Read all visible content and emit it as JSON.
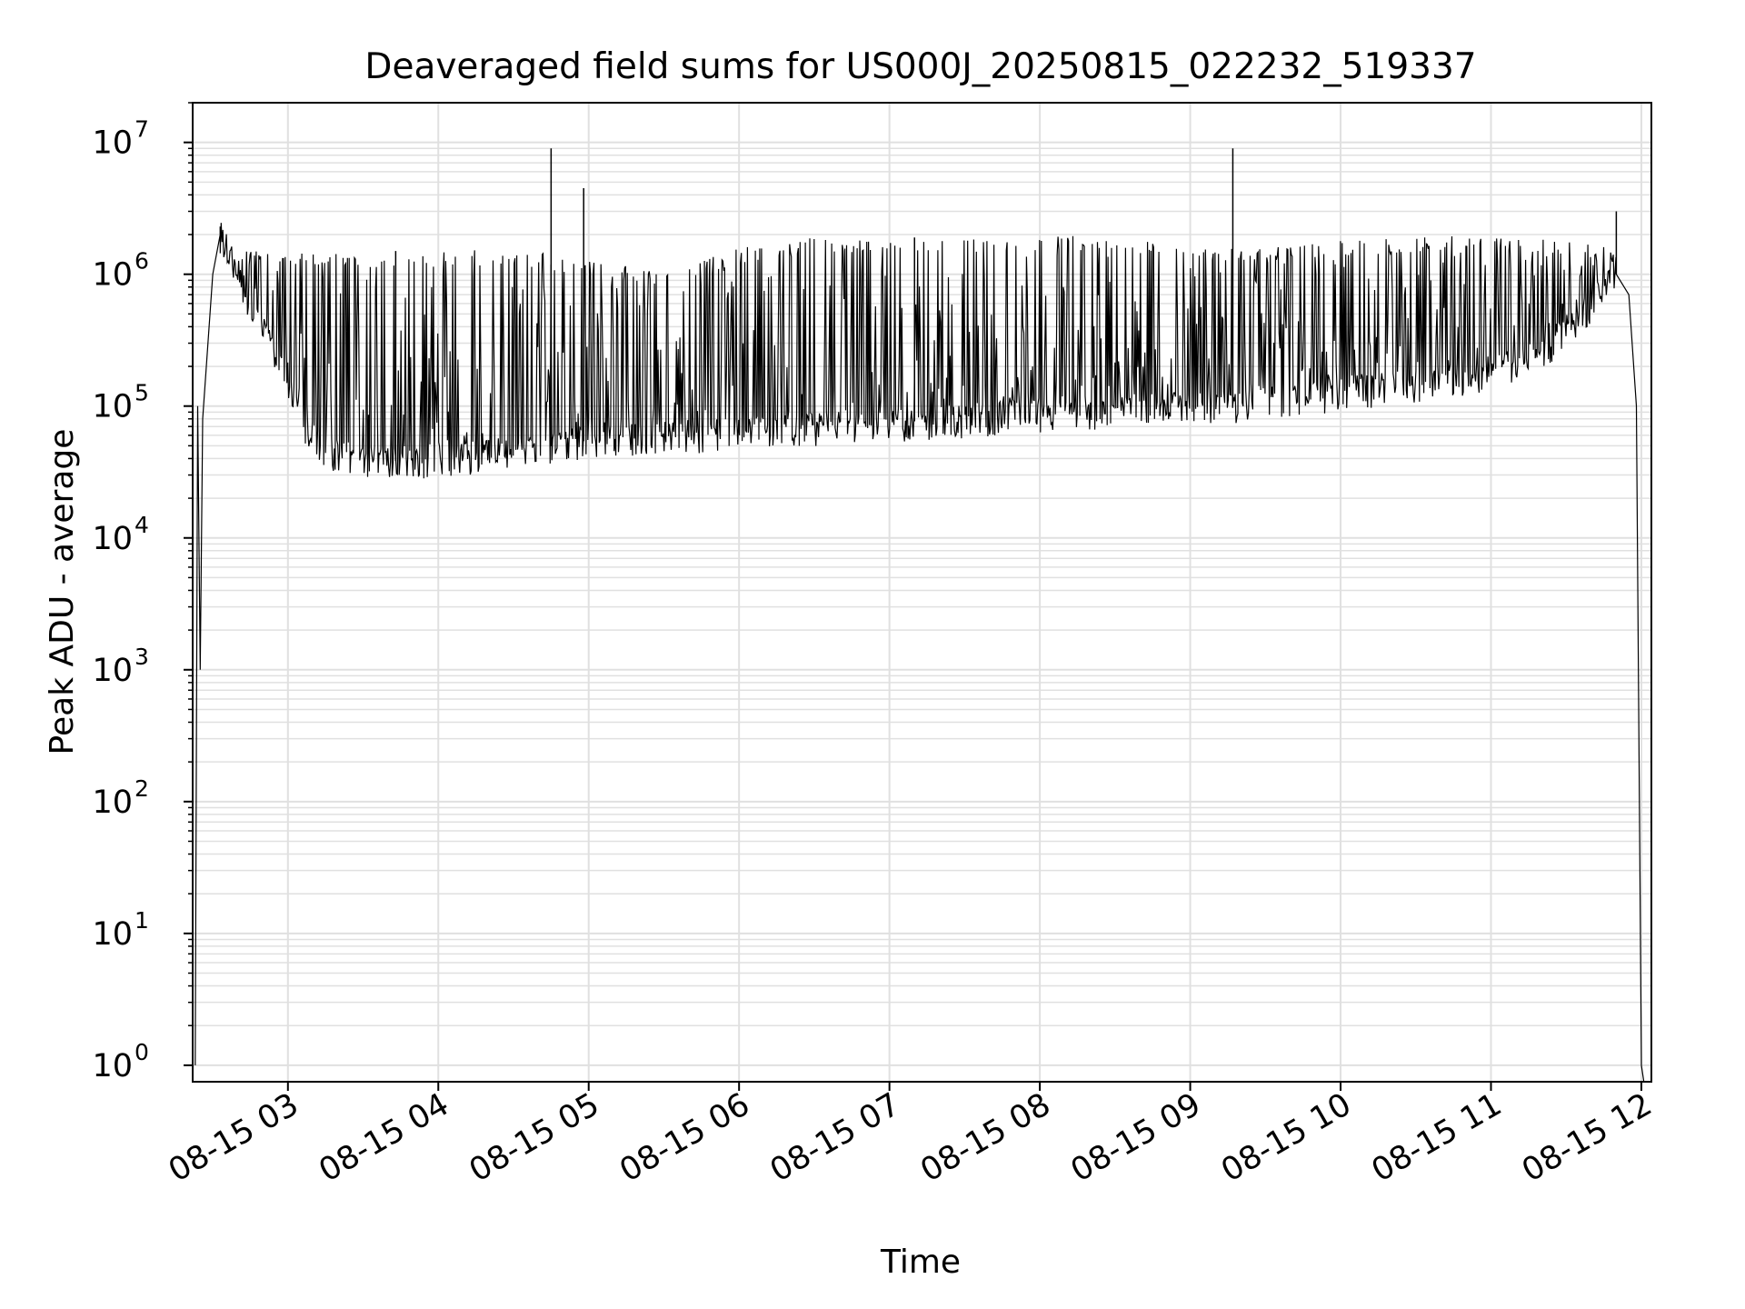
{
  "chart_data": {
    "type": "line",
    "title": "Deaveraged field sums for US000J_20250815_022232_519337",
    "xlabel": "Time",
    "ylabel": "Peak ADU - average",
    "yscale": "log",
    "xlim": [
      "2025-08-15 02:22",
      "2025-08-15 12:04"
    ],
    "ylim": [
      0.75,
      20000000
    ],
    "grid": true,
    "line_color": "#000000",
    "grid_color": "#e0e0e0",
    "x_ticks": [
      "08-15 03",
      "08-15 04",
      "08-15 05",
      "08-15 06",
      "08-15 07",
      "08-15 08",
      "08-15 09",
      "08-15 10",
      "08-15 11",
      "08-15 12"
    ],
    "y_ticks": [
      {
        "base": "10",
        "exp": "0"
      },
      {
        "base": "10",
        "exp": "1"
      },
      {
        "base": "10",
        "exp": "2"
      },
      {
        "base": "10",
        "exp": "3"
      },
      {
        "base": "10",
        "exp": "4"
      },
      {
        "base": "10",
        "exp": "5"
      },
      {
        "base": "10",
        "exp": "6"
      },
      {
        "base": "10",
        "exp": "7"
      }
    ],
    "series": [
      {
        "baseline": [
          [
            "2025-08-15 02:23",
            1
          ],
          [
            "2025-08-15 02:24",
            100000
          ],
          [
            "2025-08-15 02:25",
            1000
          ],
          [
            "2025-08-15 02:26",
            80000
          ],
          [
            "2025-08-15 02:30",
            1000000
          ],
          [
            "2025-08-15 02:33",
            2000000
          ],
          [
            "2025-08-15 02:36",
            1500000
          ],
          [
            "2025-08-15 02:45",
            600000
          ],
          [
            "2025-08-15 02:55",
            250000
          ],
          [
            "2025-08-15 03:05",
            80000
          ],
          [
            "2025-08-15 03:15",
            45000
          ],
          [
            "2025-08-15 03:30",
            40000
          ],
          [
            "2025-08-15 03:45",
            38000
          ],
          [
            "2025-08-15 04:00",
            40000
          ],
          [
            "2025-08-15 04:30",
            45000
          ],
          [
            "2025-08-15 05:00",
            55000
          ],
          [
            "2025-08-15 05:30",
            60000
          ],
          [
            "2025-08-15 06:00",
            65000
          ],
          [
            "2025-08-15 06:30",
            70000
          ],
          [
            "2025-08-15 07:00",
            75000
          ],
          [
            "2025-08-15 07:30",
            80000
          ],
          [
            "2025-08-15 08:00",
            90000
          ],
          [
            "2025-08-15 08:30",
            95000
          ],
          [
            "2025-08-15 09:00",
            100000
          ],
          [
            "2025-08-15 09:30",
            110000
          ],
          [
            "2025-08-15 10:00",
            130000
          ],
          [
            "2025-08-15 10:30",
            150000
          ],
          [
            "2025-08-15 11:00",
            180000
          ],
          [
            "2025-08-15 11:20",
            250000
          ],
          [
            "2025-08-15 11:40",
            600000
          ],
          [
            "2025-08-15 11:50",
            1000000
          ],
          [
            "2025-08-15 11:55",
            700000
          ],
          [
            "2025-08-15 11:58",
            100000
          ],
          [
            "2025-08-15 12:00",
            1
          ],
          [
            "2025-08-15 12:01",
            0.75
          ]
        ],
        "envelope_top": [
          [
            "2025-08-15 02:40",
            1500000
          ],
          [
            "2025-08-15 03:00",
            1500000
          ],
          [
            "2025-08-15 03:30",
            1300000
          ],
          [
            "2025-08-15 04:00",
            1400000
          ],
          [
            "2025-08-15 04:30",
            1500000
          ],
          [
            "2025-08-15 05:00",
            1200000
          ],
          [
            "2025-08-15 05:30",
            1000000
          ],
          [
            "2025-08-15 06:00",
            1500000
          ],
          [
            "2025-08-15 06:30",
            1800000
          ],
          [
            "2025-08-15 07:00",
            1800000
          ],
          [
            "2025-08-15 07:30",
            1800000
          ],
          [
            "2025-08-15 08:00",
            1900000
          ],
          [
            "2025-08-15 08:30",
            1900000
          ],
          [
            "2025-08-15 09:00",
            1500000
          ],
          [
            "2025-08-15 09:30",
            1500000
          ],
          [
            "2025-08-15 10:00",
            1700000
          ],
          [
            "2025-08-15 10:30",
            1800000
          ],
          [
            "2025-08-15 11:00",
            1900000
          ],
          [
            "2025-08-15 11:30",
            1700000
          ],
          [
            "2025-08-15 11:50",
            1500000
          ]
        ],
        "spikes": [
          [
            "2025-08-15 02:33",
            2300000
          ],
          [
            "2025-08-15 03:43",
            1500000
          ],
          [
            "2025-08-15 04:45",
            9000000
          ],
          [
            "2025-08-15 04:58",
            4500000
          ],
          [
            "2025-08-15 07:10",
            1900000
          ],
          [
            "2025-08-15 09:17",
            9000000
          ],
          [
            "2025-08-15 11:50",
            3000000
          ]
        ]
      }
    ]
  }
}
